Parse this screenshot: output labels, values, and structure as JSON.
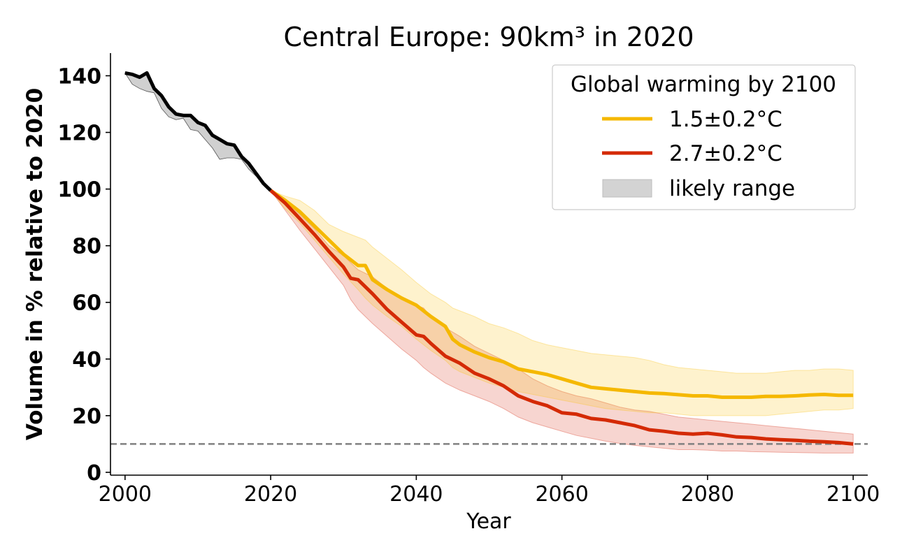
{
  "chart_data": {
    "type": "line",
    "title": "Central Europe: 90km³ in 2020",
    "xlabel": "Year",
    "ylabel": "Volume in % relative to 2020",
    "xlim": [
      1998,
      2102
    ],
    "ylim": [
      -1,
      148
    ],
    "xticks": [
      2000,
      2020,
      2040,
      2060,
      2080,
      2100
    ],
    "yticks": [
      0,
      20,
      40,
      60,
      80,
      100,
      120,
      140
    ],
    "reference_line": {
      "y": 10,
      "style": "dashed",
      "color": "#808080"
    },
    "legend": {
      "title": "Global warming by 2100",
      "position": "top-right",
      "entries": [
        "1.5±0.2°C",
        "2.7±0.2°C",
        "likely range"
      ]
    },
    "series": [
      {
        "kind": "historical",
        "color": "#000000",
        "x": [
          2000,
          2001,
          2002,
          2003,
          2004,
          2005,
          2006,
          2007,
          2008,
          2009,
          2010,
          2011,
          2012,
          2013,
          2014,
          2015,
          2016,
          2017,
          2018,
          2019,
          2020
        ],
        "y": [
          141,
          140.5,
          139.5,
          141,
          135.5,
          133,
          129,
          126.5,
          126,
          126,
          123.5,
          122.5,
          119,
          117.5,
          116,
          115.5,
          111.5,
          109,
          105.5,
          102,
          99.5
        ],
        "low": [
          141,
          137,
          135.5,
          134.5,
          134,
          128.5,
          125.5,
          124.5,
          125,
          121,
          120.5,
          117.5,
          114.5,
          110.5,
          111,
          111,
          110.5,
          107,
          104.5,
          101.5,
          99.5
        ],
        "high": [
          141,
          140.5,
          139.5,
          141,
          135.5,
          133,
          129,
          126.5,
          126,
          126,
          123.5,
          122.5,
          119,
          117.5,
          116,
          115.5,
          111.5,
          109,
          105.5,
          102,
          99.5
        ]
      },
      {
        "name": "1.5±0.2°C",
        "color": "#f5b800",
        "band_color": "#f9c21a",
        "x": [
          2020,
          2022,
          2024,
          2026,
          2028,
          2030,
          2032,
          2033,
          2034,
          2036,
          2038,
          2040,
          2042,
          2044,
          2045,
          2046,
          2048,
          2050,
          2052,
          2054,
          2056,
          2058,
          2060,
          2062,
          2064,
          2066,
          2068,
          2070,
          2072,
          2074,
          2076,
          2078,
          2080,
          2082,
          2084,
          2086,
          2088,
          2090,
          2092,
          2094,
          2096,
          2098,
          2100
        ],
        "y": [
          99.5,
          96,
          92,
          87,
          82,
          77,
          73,
          73,
          68,
          64.5,
          61.5,
          59,
          55,
          51.5,
          47,
          45,
          42.5,
          40.5,
          39,
          36.5,
          35.5,
          34.5,
          33,
          31.5,
          30,
          29.5,
          29,
          28.5,
          28,
          27.8,
          27.4,
          27,
          27,
          26.5,
          26.5,
          26.5,
          26.8,
          26.8,
          27,
          27.3,
          27.5,
          27.2,
          27.2
        ],
        "low": [
          99.5,
          93,
          88,
          82,
          76,
          70,
          64.5,
          61.5,
          59,
          55,
          51.5,
          47,
          43,
          39.5,
          37,
          35.5,
          33.5,
          31.5,
          30,
          28.5,
          27.5,
          26.5,
          25.5,
          24.5,
          23.5,
          22.5,
          22,
          21.5,
          21,
          21,
          20.5,
          20,
          20,
          20,
          20,
          20,
          20,
          20.5,
          21,
          21.5,
          22,
          22,
          22.5
        ],
        "high": [
          99.5,
          97.5,
          96,
          92.5,
          87.5,
          85,
          83,
          82,
          79.5,
          75.5,
          71.5,
          67,
          63,
          60,
          58,
          57,
          55,
          52.5,
          51,
          49,
          46.5,
          45,
          44,
          43,
          42,
          41.5,
          41,
          40.5,
          39.5,
          38,
          37,
          36.5,
          36,
          35.5,
          35,
          35,
          35,
          35.5,
          36,
          36,
          36.5,
          36.5,
          36
        ]
      },
      {
        "name": "2.7±0.2°C",
        "color": "#d42a05",
        "band_color": "#e57b6c",
        "x": [
          2020,
          2022,
          2024,
          2026,
          2028,
          2030,
          2031,
          2032,
          2034,
          2036,
          2038,
          2040,
          2041,
          2042,
          2044,
          2046,
          2048,
          2050,
          2052,
          2054,
          2056,
          2058,
          2060,
          2062,
          2064,
          2066,
          2068,
          2070,
          2072,
          2074,
          2076,
          2078,
          2080,
          2082,
          2084,
          2086,
          2088,
          2090,
          2092,
          2094,
          2096,
          2098,
          2100
        ],
        "y": [
          99.5,
          95,
          89.5,
          84,
          78,
          72.5,
          68.5,
          68,
          63,
          57.5,
          53,
          48.5,
          48,
          45.5,
          41,
          38.5,
          35,
          33,
          30.5,
          27,
          25,
          23.5,
          21,
          20.5,
          19,
          18.5,
          17.5,
          16.5,
          15,
          14.5,
          13.8,
          13.5,
          13.8,
          13.2,
          12.5,
          12.3,
          11.8,
          11.5,
          11.3,
          11,
          10.8,
          10.5,
          10
        ],
        "low": [
          99.5,
          92.5,
          85.5,
          79,
          72.5,
          66,
          61,
          57.5,
          52.5,
          48,
          43.5,
          39.5,
          37,
          35,
          31.5,
          29,
          27,
          25,
          22.5,
          19.5,
          17.5,
          16,
          14.5,
          13,
          12,
          11,
          10.2,
          9.5,
          9,
          8.5,
          8,
          8,
          7.8,
          7.5,
          7.5,
          7.3,
          7.2,
          7.1,
          7,
          6.9,
          6.8,
          6.8,
          6.8
        ],
        "high": [
          99.5,
          96,
          91,
          86,
          80,
          76.5,
          74,
          71.5,
          69,
          65,
          61.5,
          59,
          58,
          55,
          51,
          48,
          44.5,
          42,
          39.5,
          36.5,
          33,
          30.5,
          28.5,
          27,
          26,
          24.5,
          23,
          22,
          21.5,
          20.5,
          19.5,
          19,
          18.5,
          18,
          17.5,
          17,
          16.5,
          16,
          15.5,
          15,
          14.5,
          14,
          13.5
        ]
      }
    ]
  },
  "colors": {
    "hist_band": "#a9a9a9",
    "legend_band": "#d3d3d3",
    "legend_border": "#cccccc"
  }
}
